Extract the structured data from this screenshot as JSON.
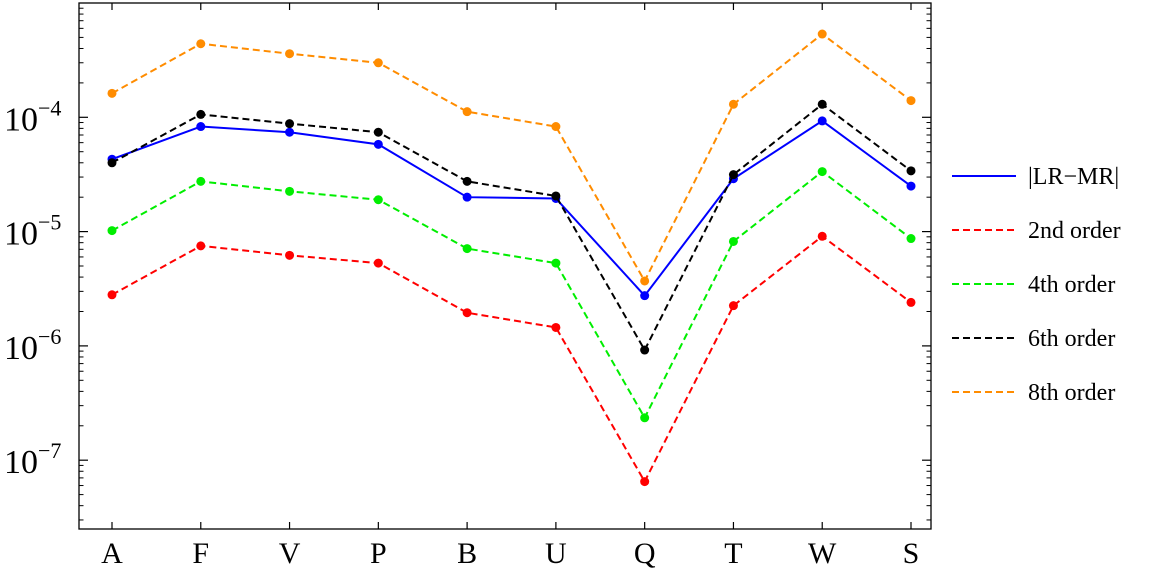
{
  "chart_data": {
    "type": "line",
    "categories": [
      "A",
      "F",
      "V",
      "P",
      "B",
      "U",
      "Q",
      "T",
      "W",
      "S"
    ],
    "y_scale": "log",
    "ylim": [
      2.5e-08,
      0.001
    ],
    "ytick_values": [
      1e-07,
      1e-06,
      1e-05,
      0.0001
    ],
    "ytick_labels": [
      {
        "base": "10",
        "exp": "−7"
      },
      {
        "base": "10",
        "exp": "−6"
      },
      {
        "base": "10",
        "exp": "−5"
      },
      {
        "base": "10",
        "exp": "−4"
      }
    ],
    "legend_position": "right, outside plot",
    "grid": false,
    "series": [
      {
        "name": "|LR−MR|",
        "color": "#0000ff",
        "dash": "solid",
        "values": [
          4.3e-05,
          8.3e-05,
          7.4e-05,
          5.8e-05,
          2e-05,
          1.95e-05,
          2.75e-06,
          2.9e-05,
          9.3e-05,
          2.5e-05
        ]
      },
      {
        "name": "2nd order",
        "color": "#ff0000",
        "dash": "dashed",
        "values": [
          2.8e-06,
          7.5e-06,
          6.2e-06,
          5.3e-06,
          1.95e-06,
          1.45e-06,
          6.5e-08,
          2.25e-06,
          9.1e-06,
          2.4e-06
        ]
      },
      {
        "name": "4th order",
        "color": "#00ee00",
        "dash": "dashed",
        "values": [
          1.02e-05,
          2.75e-05,
          2.25e-05,
          1.9e-05,
          7.1e-06,
          5.3e-06,
          2.35e-07,
          8.2e-06,
          3.35e-05,
          8.7e-06
        ]
      },
      {
        "name": "6th order",
        "color": "#000000",
        "dash": "dashed",
        "values": [
          4e-05,
          0.000106,
          8.8e-05,
          7.4e-05,
          2.75e-05,
          2.05e-05,
          9.2e-07,
          3.15e-05,
          0.00013,
          3.4e-05
        ]
      },
      {
        "name": "8th order",
        "color": "#ff8c00",
        "dash": "dashed",
        "values": [
          0.000162,
          0.00044,
          0.00036,
          0.0003,
          0.000112,
          8.3e-05,
          3.7e-06,
          0.00013,
          0.000535,
          0.00014
        ]
      }
    ]
  }
}
